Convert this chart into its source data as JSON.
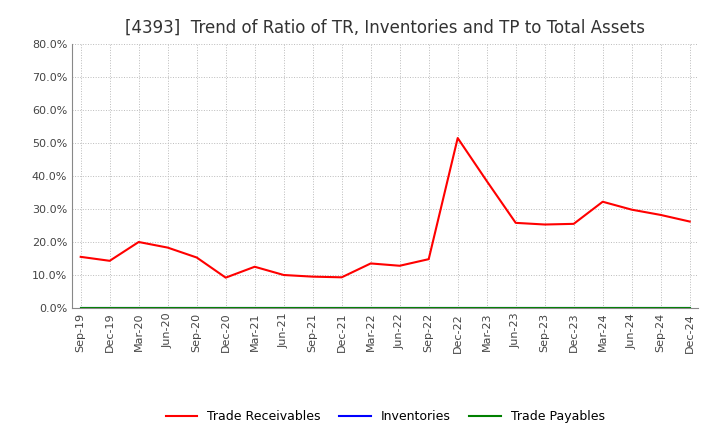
{
  "title": "[4393]  Trend of Ratio of TR, Inventories and TP to Total Assets",
  "x_labels": [
    "Sep-19",
    "Dec-19",
    "Mar-20",
    "Jun-20",
    "Sep-20",
    "Dec-20",
    "Mar-21",
    "Jun-21",
    "Sep-21",
    "Dec-21",
    "Mar-22",
    "Jun-22",
    "Sep-22",
    "Dec-22",
    "Mar-23",
    "Jun-23",
    "Sep-23",
    "Dec-23",
    "Mar-24",
    "Jun-24",
    "Sep-24",
    "Dec-24"
  ],
  "trade_receivables": [
    0.155,
    0.143,
    0.2,
    0.183,
    0.153,
    0.092,
    0.125,
    0.1,
    0.095,
    0.093,
    0.135,
    0.128,
    0.148,
    0.515,
    0.385,
    0.258,
    0.253,
    0.255,
    0.322,
    0.298,
    0.282,
    0.262
  ],
  "inventories": [
    0.0,
    0.0,
    0.0,
    0.0,
    0.0,
    0.0,
    0.0,
    0.0,
    0.0,
    0.0,
    0.0,
    0.0,
    0.0,
    0.0,
    0.0,
    0.0,
    0.0,
    0.0,
    0.0,
    0.0,
    0.0,
    0.0
  ],
  "trade_payables": [
    0.0,
    0.0,
    0.0,
    0.0,
    0.0,
    0.0,
    0.0,
    0.0,
    0.0,
    0.0,
    0.0,
    0.0,
    0.0,
    0.0,
    0.0,
    0.0,
    0.0,
    0.0,
    0.0,
    0.0,
    0.0,
    0.0
  ],
  "tr_color": "#FF0000",
  "inv_color": "#0000FF",
  "tp_color": "#008000",
  "ylim": [
    0.0,
    0.8
  ],
  "yticks": [
    0.0,
    0.1,
    0.2,
    0.3,
    0.4,
    0.5,
    0.6,
    0.7,
    0.8
  ],
  "background_color": "#FFFFFF",
  "grid_color": "#BBBBBB",
  "title_fontsize": 12,
  "title_color": "#333333",
  "tick_fontsize": 8,
  "legend_fontsize": 9
}
